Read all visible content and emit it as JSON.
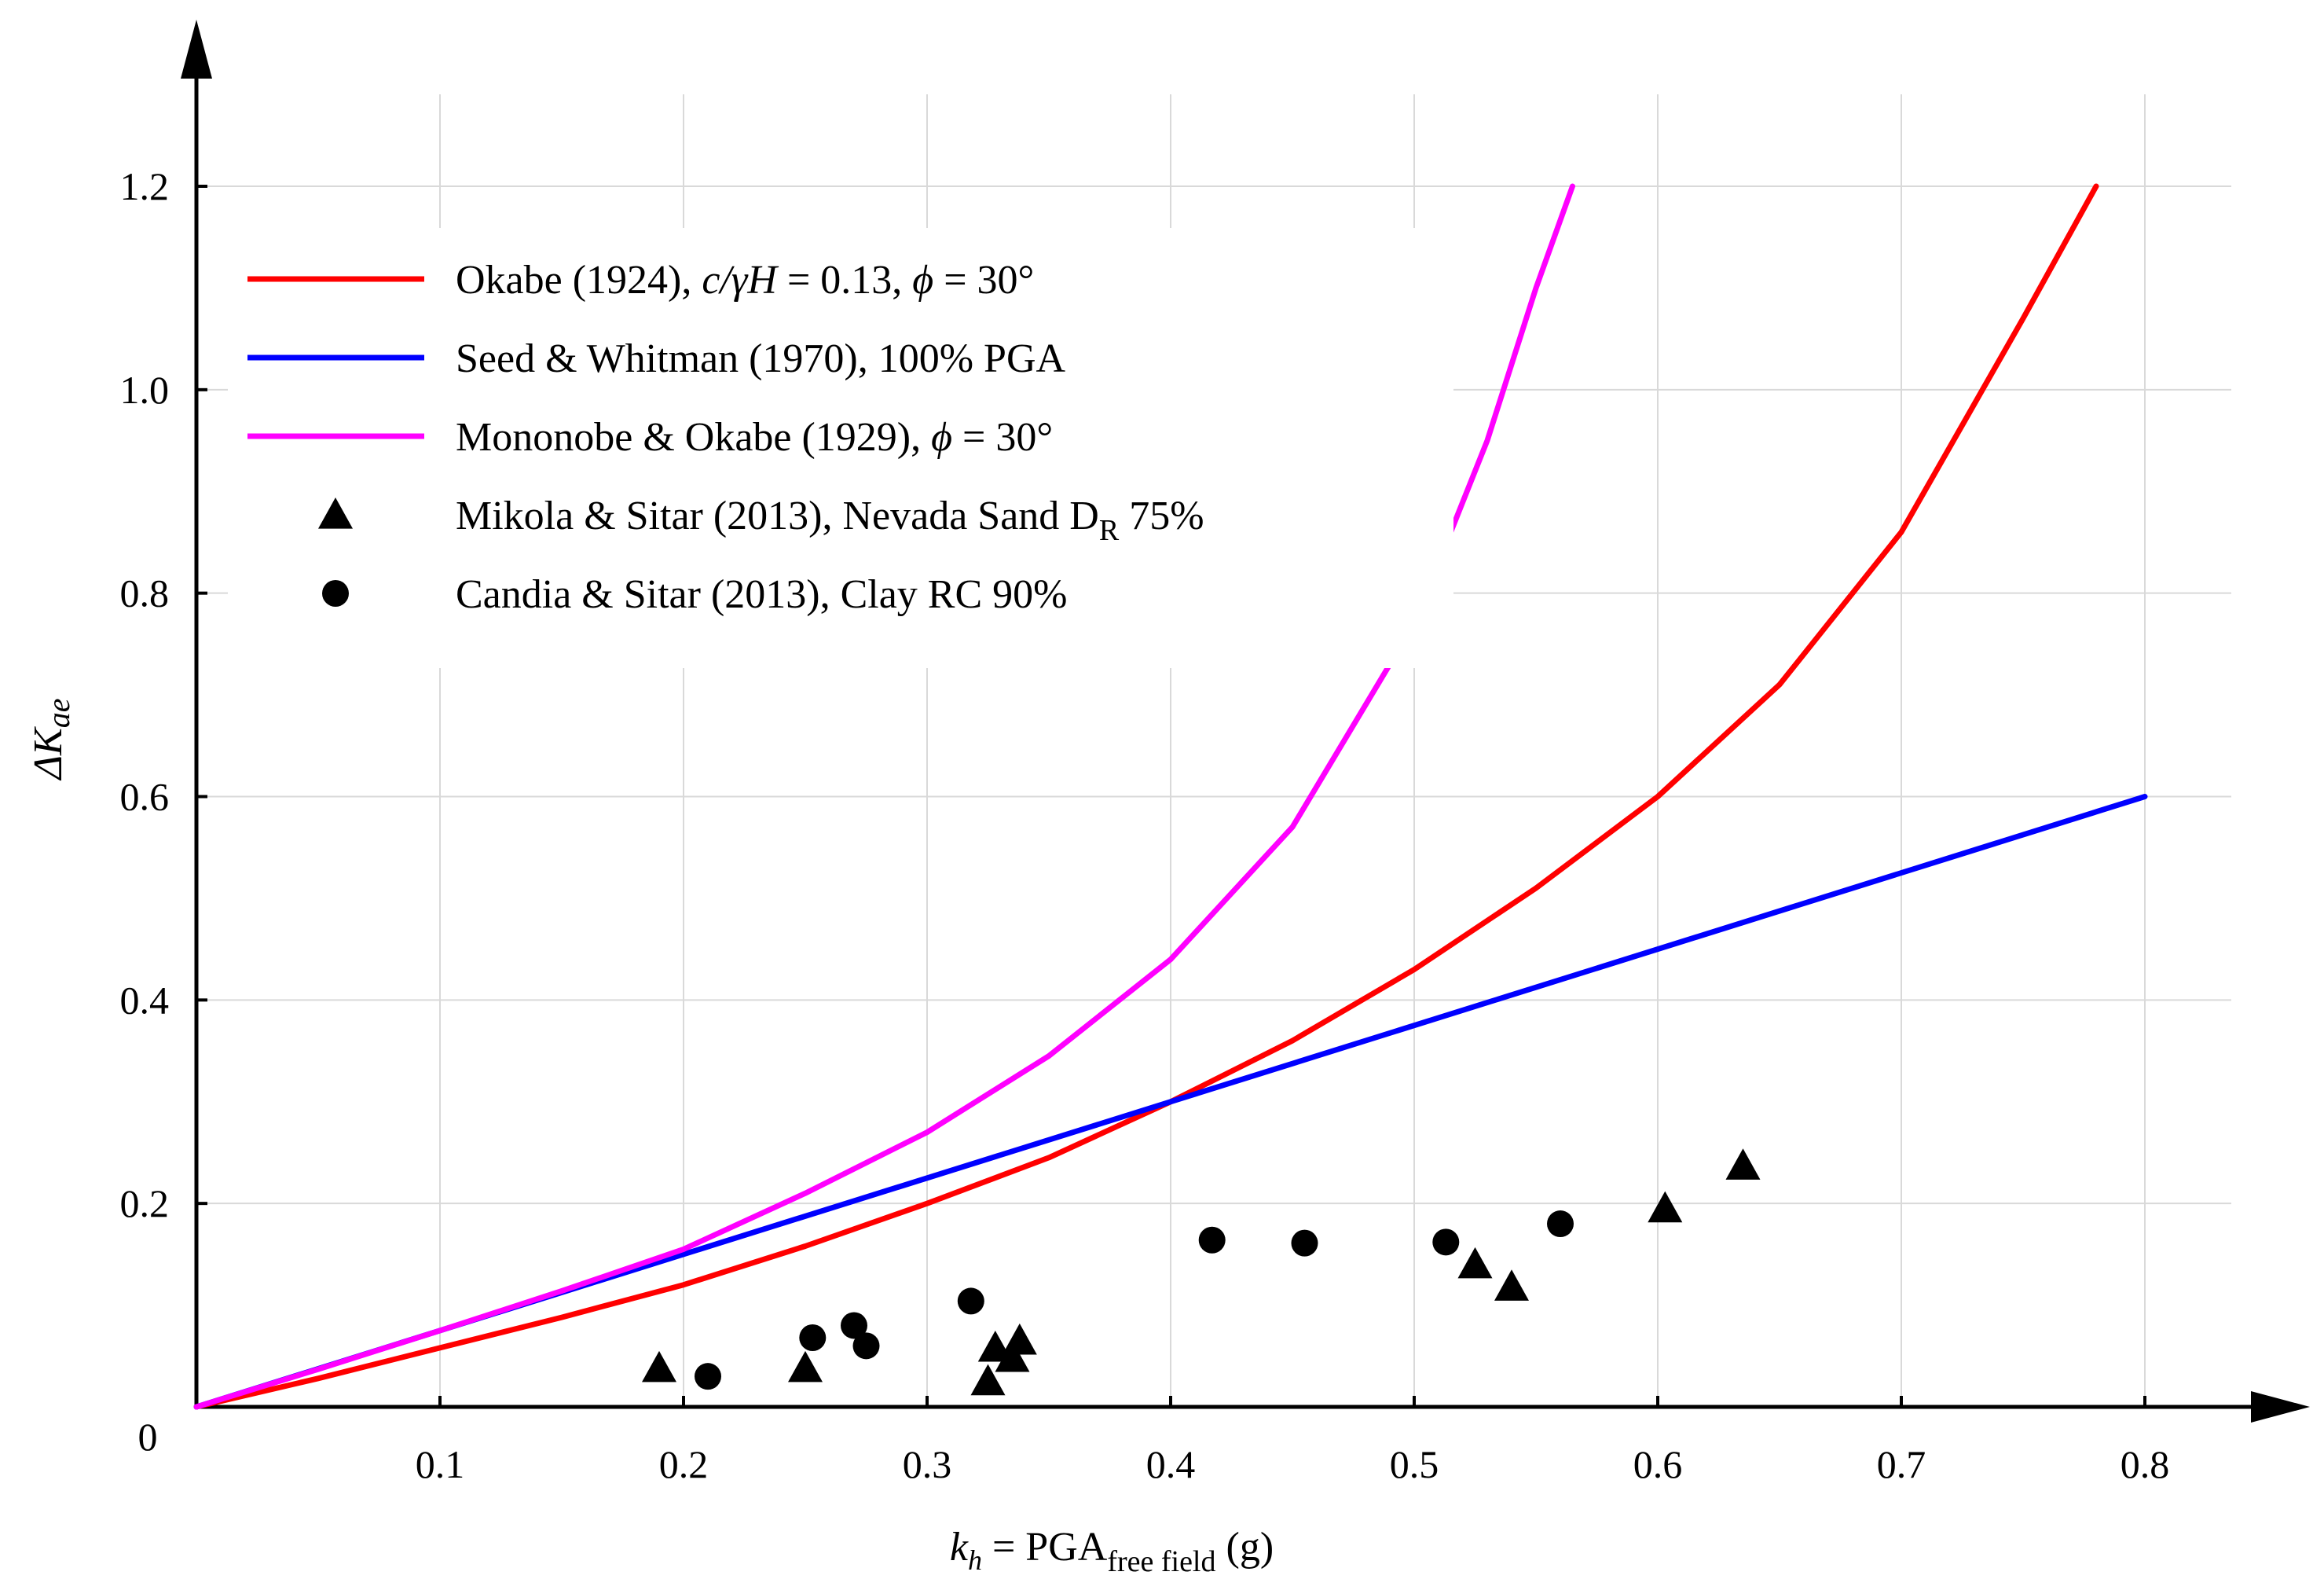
{
  "chart_data": {
    "type": "line",
    "xlabel": {
      "main": "k",
      "main_sub": "h",
      "rest": " = PGA",
      "sub": "free field",
      "unit": "  (g)"
    },
    "ylabel": {
      "prefix": "Δ",
      "main": "K",
      "sub": "ae"
    },
    "xlim": [
      0,
      0.8
    ],
    "ylim": [
      0,
      1.2
    ],
    "x_ticks": [
      {
        "value": 0.1,
        "label": "0.1"
      },
      {
        "value": 0.2,
        "label": "0.2"
      },
      {
        "value": 0.3,
        "label": "0.3"
      },
      {
        "value": 0.4,
        "label": "0.4"
      },
      {
        "value": 0.5,
        "label": "0.5"
      },
      {
        "value": 0.6,
        "label": "0.6"
      },
      {
        "value": 0.7,
        "label": "0.7"
      },
      {
        "value": 0.8,
        "label": "0.8"
      }
    ],
    "y_ticks": [
      {
        "value": 0.2,
        "label": "0.2"
      },
      {
        "value": 0.4,
        "label": "0.4"
      },
      {
        "value": 0.6,
        "label": "0.6"
      },
      {
        "value": 0.8,
        "label": "0.8"
      },
      {
        "value": 1.0,
        "label": "1.0"
      },
      {
        "value": 1.2,
        "label": "1.2"
      }
    ],
    "origin_label": "0",
    "grid": true,
    "legend_position": "top-left",
    "series": [
      {
        "key": "okabe",
        "kind": "line",
        "color": "#ff0000",
        "legend": {
          "a": "Okabe (1924), ",
          "b": "c/γH",
          "c": " = 0.13, ",
          "d": "ϕ",
          "e": " = 30°"
        },
        "x": [
          0,
          0.05,
          0.1,
          0.15,
          0.2,
          0.25,
          0.3,
          0.35,
          0.4,
          0.45,
          0.5,
          0.55,
          0.6,
          0.65,
          0.7,
          0.75,
          0.78
        ],
        "y": [
          0,
          0.028,
          0.058,
          0.088,
          0.12,
          0.158,
          0.2,
          0.245,
          0.3,
          0.36,
          0.43,
          0.51,
          0.6,
          0.71,
          0.86,
          1.07,
          1.2
        ]
      },
      {
        "key": "seed",
        "kind": "line",
        "color": "#0000ff",
        "legend": {
          "a": "Seed & Whitman (1970), 100% PGA"
        },
        "x": [
          0,
          0.8
        ],
        "y": [
          0,
          0.6
        ]
      },
      {
        "key": "mononobe",
        "kind": "line",
        "color": "#ff00ff",
        "legend": {
          "a": "Mononobe & Okabe (1929), ",
          "d": "ϕ",
          "e": " = 30°"
        },
        "x": [
          0,
          0.05,
          0.1,
          0.15,
          0.2,
          0.25,
          0.3,
          0.35,
          0.4,
          0.45,
          0.5,
          0.53,
          0.55,
          0.565
        ],
        "y": [
          0,
          0.037,
          0.075,
          0.114,
          0.155,
          0.21,
          0.27,
          0.345,
          0.44,
          0.57,
          0.77,
          0.95,
          1.1,
          1.2
        ]
      },
      {
        "key": "mikola",
        "kind": "scatter",
        "marker": "triangle",
        "color": "#000000",
        "legend": {
          "a": "Mikola & Sitar (2013), Nevada Sand D",
          "sub": "R",
          "e": " 75%"
        },
        "x": [
          0.19,
          0.25,
          0.325,
          0.328,
          0.335,
          0.338,
          0.525,
          0.54,
          0.603,
          0.635
        ],
        "y": [
          0.038,
          0.038,
          0.025,
          0.058,
          0.048,
          0.065,
          0.14,
          0.118,
          0.195,
          0.237
        ]
      },
      {
        "key": "candia",
        "kind": "scatter",
        "marker": "circle",
        "color": "#000000",
        "legend": {
          "a": "Candia & Sitar (2013), Clay RC 90%"
        },
        "x": [
          0.21,
          0.253,
          0.27,
          0.275,
          0.318,
          0.417,
          0.455,
          0.513,
          0.56
        ],
        "y": [
          0.03,
          0.068,
          0.08,
          0.06,
          0.104,
          0.164,
          0.161,
          0.162,
          0.18
        ]
      }
    ]
  }
}
